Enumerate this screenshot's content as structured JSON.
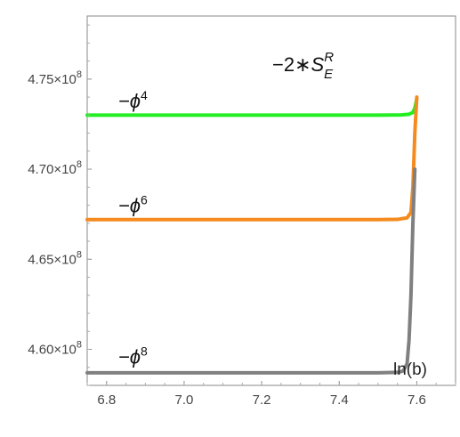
{
  "chart_data": {
    "type": "line",
    "title": {
      "prefix": "−2∗",
      "symbol": "S",
      "sup": "R",
      "sub": "E"
    },
    "xlabel": "ln(b)",
    "ylabel": "",
    "xlim": [
      6.75,
      7.7
    ],
    "ylim": [
      458000000,
      478500000
    ],
    "grid": false,
    "x_ticks": [
      {
        "value": 6.8,
        "label": "6.8"
      },
      {
        "value": 7.0,
        "label": "7.0"
      },
      {
        "value": 7.2,
        "label": "7.2"
      },
      {
        "value": 7.4,
        "label": "7.4"
      },
      {
        "value": 7.6,
        "label": "7.6"
      }
    ],
    "y_ticks": [
      {
        "value": 460000000,
        "mantissa": "4.60",
        "times": "×10",
        "exp": "8"
      },
      {
        "value": 465000000,
        "mantissa": "4.65",
        "times": "×10",
        "exp": "8"
      },
      {
        "value": 470000000,
        "mantissa": "4.70",
        "times": "×10",
        "exp": "8"
      },
      {
        "value": 475000000,
        "mantissa": "4.75",
        "times": "×10",
        "exp": "8"
      }
    ],
    "series": [
      {
        "label_base": "−ϕ",
        "label_sup": "4",
        "color": "#22ee22",
        "label_at": [
          6.83,
          473400000
        ],
        "points": [
          [
            6.75,
            473000000
          ],
          [
            7.0,
            473000000
          ],
          [
            7.3,
            473000000
          ],
          [
            7.5,
            473000000
          ],
          [
            7.56,
            473010000
          ],
          [
            7.58,
            473050000
          ],
          [
            7.59,
            473150000
          ],
          [
            7.595,
            473400000
          ],
          [
            7.6,
            473900000
          ]
        ]
      },
      {
        "label_base": "−ϕ",
        "label_sup": "6",
        "color": "#f58b1f",
        "label_at": [
          6.83,
          467600000
        ],
        "points": [
          [
            6.75,
            467200000
          ],
          [
            7.0,
            467200000
          ],
          [
            7.3,
            467200000
          ],
          [
            7.5,
            467200000
          ],
          [
            7.55,
            467210000
          ],
          [
            7.575,
            467300000
          ],
          [
            7.585,
            467600000
          ],
          [
            7.59,
            469000000
          ],
          [
            7.595,
            472000000
          ],
          [
            7.6,
            474000000
          ]
        ]
      },
      {
        "label_base": "−ϕ",
        "label_sup": "8",
        "color": "#808080",
        "label_at": [
          6.83,
          459200000
        ],
        "points": [
          [
            6.75,
            458700000
          ],
          [
            7.0,
            458700000
          ],
          [
            7.3,
            458700000
          ],
          [
            7.5,
            458700000
          ],
          [
            7.55,
            458720000
          ],
          [
            7.565,
            458800000
          ],
          [
            7.575,
            459200000
          ],
          [
            7.58,
            460500000
          ],
          [
            7.585,
            463000000
          ],
          [
            7.59,
            467000000
          ],
          [
            7.595,
            470000000
          ]
        ]
      }
    ]
  }
}
